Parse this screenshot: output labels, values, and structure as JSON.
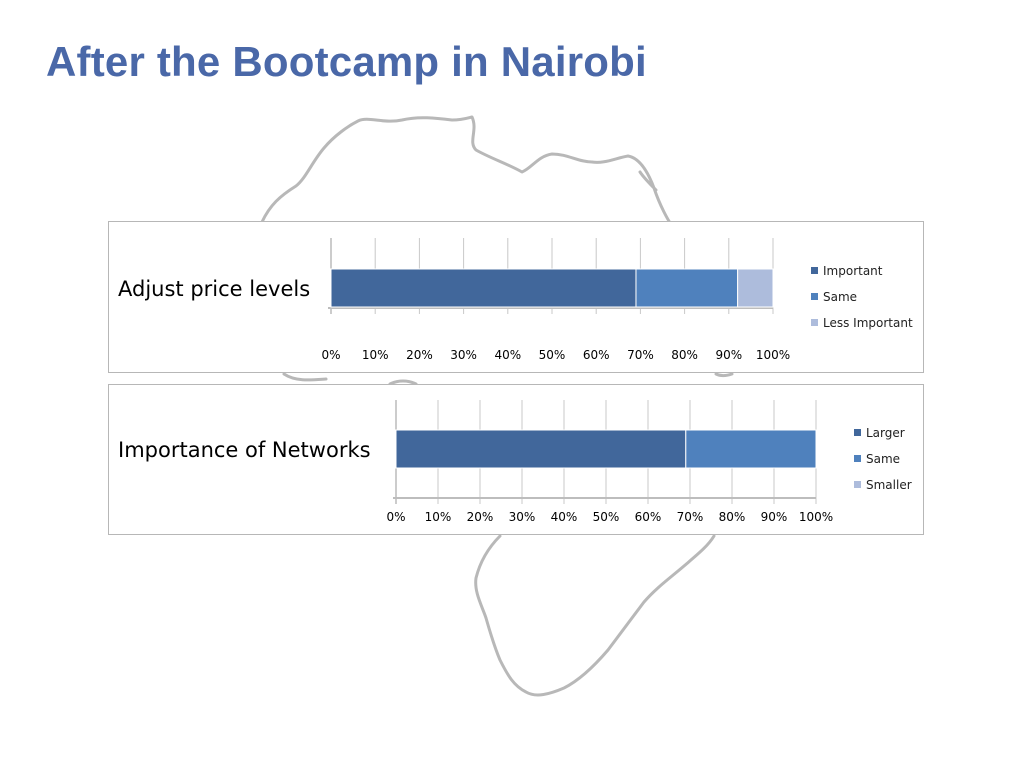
{
  "slide": {
    "title": "After the Bootcamp in Nairobi"
  },
  "colors": {
    "title": "#4a68a8",
    "africa_outline": "#b8b8b8",
    "grid": "#c8c8c8",
    "series_dark": "#41679b",
    "series_mid": "#4f81bd",
    "series_light": "#adbcdc"
  },
  "chart_data": [
    {
      "type": "bar",
      "orientation": "horizontal",
      "stacked": "percent",
      "title": "Adjust price levels",
      "categories": [
        "Adjust price levels"
      ],
      "series": [
        {
          "name": "Important",
          "values": [
            69
          ],
          "color": "#41679b"
        },
        {
          "name": "Same",
          "values": [
            23
          ],
          "color": "#4f81bd"
        },
        {
          "name": "Less Important",
          "values": [
            8
          ],
          "color": "#adbcdc"
        }
      ],
      "xlim": [
        0,
        100
      ],
      "xticks": [
        "0%",
        "10%",
        "20%",
        "30%",
        "40%",
        "50%",
        "60%",
        "70%",
        "80%",
        "90%",
        "100%"
      ],
      "grid": true,
      "legend": "right"
    },
    {
      "type": "bar",
      "orientation": "horizontal",
      "stacked": "percent",
      "title": "Importance of Networks",
      "categories": [
        "Importance of Networks"
      ],
      "series": [
        {
          "name": "Larger",
          "values": [
            69
          ],
          "color": "#41679b"
        },
        {
          "name": "Same",
          "values": [
            31
          ],
          "color": "#4f81bd"
        },
        {
          "name": "Smaller",
          "values": [
            0
          ],
          "color": "#adbcdc"
        }
      ],
      "xlim": [
        0,
        100
      ],
      "xticks": [
        "0%",
        "10%",
        "20%",
        "30%",
        "40%",
        "50%",
        "60%",
        "70%",
        "80%",
        "90%",
        "100%"
      ],
      "grid": true,
      "legend": "right"
    }
  ]
}
